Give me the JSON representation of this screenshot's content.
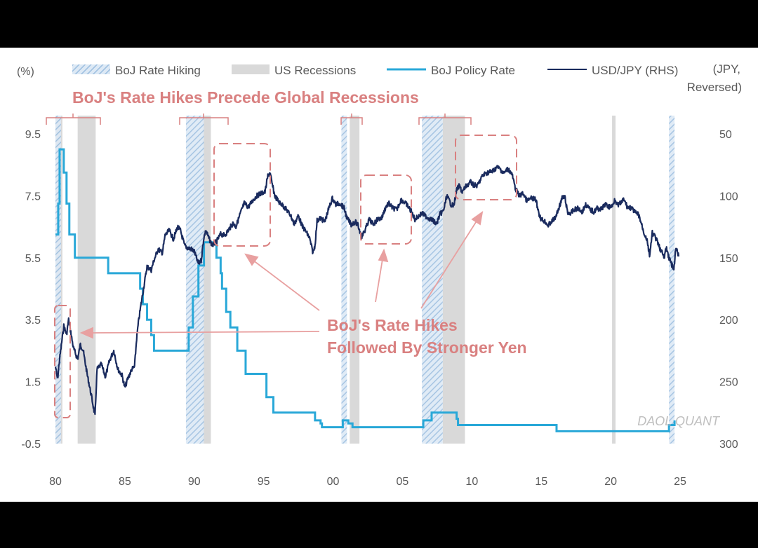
{
  "chart_data": {
    "type": "line",
    "y_left_unit": "(%)",
    "y_right_unit_line1": "(JPY,",
    "y_right_unit_line2": "Reversed)",
    "x_ticks": [
      "80",
      "85",
      "90",
      "95",
      "00",
      "05",
      "10",
      "15",
      "20",
      "25"
    ],
    "x_tick_years": [
      1980,
      1985,
      1990,
      1995,
      2000,
      2005,
      2010,
      2015,
      2020,
      2025
    ],
    "y_left_ticks": [
      "9.5",
      "7.5",
      "5.5",
      "3.5",
      "1.5",
      "-0.5"
    ],
    "y_left_tick_values": [
      9.5,
      7.5,
      5.5,
      3.5,
      1.5,
      -0.5
    ],
    "y_left_range": [
      -0.5,
      9.5
    ],
    "y_right_ticks": [
      "50",
      "100",
      "150",
      "200",
      "250",
      "300"
    ],
    "y_right_tick_values": [
      50,
      100,
      150,
      200,
      250,
      300
    ],
    "y_right_range": [
      50,
      300
    ],
    "y_right_reversed": true,
    "legend": {
      "hiking": "BoJ Rate Hiking",
      "recessions": "US Recessions",
      "policy": "BoJ Policy Rate",
      "usdjpy": "USD/JPY (RHS)"
    },
    "colors": {
      "policy": "#29a8d8",
      "usdjpy": "#1a2b5e",
      "recession": "#d9d9d9",
      "hiking": "#bcd4ea",
      "annotation": "#d98080"
    },
    "recessions": [
      [
        1980.0,
        1980.5
      ],
      [
        1981.6,
        1982.9
      ],
      [
        1990.6,
        1991.2
      ],
      [
        2001.2,
        2001.9
      ],
      [
        2007.9,
        2009.5
      ],
      [
        2020.1,
        2020.35
      ]
    ],
    "hiking_periods": [
      [
        1980.0,
        1980.4
      ],
      [
        1989.4,
        1990.7
      ],
      [
        2000.6,
        2001.0
      ],
      [
        2006.4,
        2007.9
      ],
      [
        2024.2,
        2024.6
      ]
    ],
    "boj_policy_rate": [
      [
        1980.0,
        6.25
      ],
      [
        1980.2,
        7.25
      ],
      [
        1980.3,
        9.0
      ],
      [
        1980.6,
        8.25
      ],
      [
        1980.8,
        7.25
      ],
      [
        1981.0,
        6.25
      ],
      [
        1981.2,
        6.25
      ],
      [
        1981.4,
        5.5
      ],
      [
        1983.0,
        5.5
      ],
      [
        1983.8,
        5.0
      ],
      [
        1986.0,
        5.0
      ],
      [
        1986.1,
        4.5
      ],
      [
        1986.3,
        4.0
      ],
      [
        1986.6,
        3.5
      ],
      [
        1986.9,
        3.0
      ],
      [
        1987.1,
        2.5
      ],
      [
        1989.4,
        2.5
      ],
      [
        1989.6,
        3.25
      ],
      [
        1989.9,
        4.25
      ],
      [
        1990.3,
        5.25
      ],
      [
        1990.7,
        6.0
      ],
      [
        1991.5,
        6.0
      ],
      [
        1991.6,
        5.5
      ],
      [
        1991.9,
        5.0
      ],
      [
        1992.0,
        4.5
      ],
      [
        1992.3,
        3.75
      ],
      [
        1992.6,
        3.25
      ],
      [
        1993.1,
        2.5
      ],
      [
        1993.7,
        1.75
      ],
      [
        1995.2,
        1.0
      ],
      [
        1995.7,
        0.5
      ],
      [
        1998.7,
        0.25
      ],
      [
        1999.1,
        0.15
      ],
      [
        1999.2,
        0.03
      ],
      [
        2000.6,
        0.03
      ],
      [
        2000.7,
        0.25
      ],
      [
        2001.1,
        0.15
      ],
      [
        2001.4,
        0.03
      ],
      [
        2006.3,
        0.03
      ],
      [
        2006.5,
        0.25
      ],
      [
        2007.1,
        0.5
      ],
      [
        2008.8,
        0.5
      ],
      [
        2008.9,
        0.3
      ],
      [
        2009.0,
        0.1
      ],
      [
        2016.0,
        0.1
      ],
      [
        2016.1,
        -0.1
      ],
      [
        2024.1,
        -0.1
      ],
      [
        2024.2,
        0.1
      ],
      [
        2024.6,
        0.25
      ]
    ],
    "usdjpy": [
      [
        1980.0,
        238
      ],
      [
        1980.15,
        248
      ],
      [
        1980.3,
        232
      ],
      [
        1980.6,
        205
      ],
      [
        1980.8,
        212
      ],
      [
        1980.95,
        200
      ],
      [
        1981.1,
        210
      ],
      [
        1981.3,
        223
      ],
      [
        1981.6,
        232
      ],
      [
        1981.8,
        220
      ],
      [
        1982.0,
        225
      ],
      [
        1982.3,
        245
      ],
      [
        1982.6,
        262
      ],
      [
        1982.85,
        278
      ],
      [
        1983.0,
        240
      ],
      [
        1983.3,
        236
      ],
      [
        1983.6,
        246
      ],
      [
        1983.9,
        233
      ],
      [
        1984.2,
        225
      ],
      [
        1984.5,
        240
      ],
      [
        1984.8,
        245
      ],
      [
        1985.0,
        255
      ],
      [
        1985.2,
        248
      ],
      [
        1985.5,
        240
      ],
      [
        1985.7,
        238
      ],
      [
        1985.85,
        215
      ],
      [
        1986.0,
        200
      ],
      [
        1986.3,
        178
      ],
      [
        1986.6,
        157
      ],
      [
        1986.9,
        160
      ],
      [
        1987.1,
        152
      ],
      [
        1987.4,
        143
      ],
      [
        1987.7,
        146
      ],
      [
        1987.9,
        132
      ],
      [
        1988.2,
        128
      ],
      [
        1988.5,
        135
      ],
      [
        1988.8,
        125
      ],
      [
        1989.0,
        128
      ],
      [
        1989.3,
        140
      ],
      [
        1989.5,
        142
      ],
      [
        1989.8,
        143
      ],
      [
        1990.0,
        145
      ],
      [
        1990.3,
        155
      ],
      [
        1990.5,
        152
      ],
      [
        1990.7,
        133
      ],
      [
        1990.85,
        128
      ],
      [
        1991.0,
        133
      ],
      [
        1991.3,
        140
      ],
      [
        1991.6,
        137
      ],
      [
        1991.9,
        131
      ],
      [
        1992.2,
        132
      ],
      [
        1992.5,
        127
      ],
      [
        1992.8,
        122
      ],
      [
        1993.0,
        125
      ],
      [
        1993.3,
        115
      ],
      [
        1993.6,
        106
      ],
      [
        1993.9,
        109
      ],
      [
        1994.2,
        104
      ],
      [
        1994.5,
        100
      ],
      [
        1994.8,
        98
      ],
      [
        1995.1,
        97
      ],
      [
        1995.3,
        84
      ],
      [
        1995.45,
        81
      ],
      [
        1995.6,
        90
      ],
      [
        1995.8,
        100
      ],
      [
        1996.1,
        105
      ],
      [
        1996.4,
        108
      ],
      [
        1996.7,
        112
      ],
      [
        1996.95,
        116
      ],
      [
        1997.2,
        123
      ],
      [
        1997.5,
        116
      ],
      [
        1997.8,
        125
      ],
      [
        1998.0,
        128
      ],
      [
        1998.3,
        134
      ],
      [
        1998.55,
        146
      ],
      [
        1998.7,
        140
      ],
      [
        1998.85,
        120
      ],
      [
        1999.1,
        118
      ],
      [
        1999.4,
        121
      ],
      [
        1999.7,
        110
      ],
      [
        1999.95,
        102
      ],
      [
        2000.2,
        107
      ],
      [
        2000.5,
        106
      ],
      [
        2000.8,
        110
      ],
      [
        2001.0,
        118
      ],
      [
        2001.3,
        123
      ],
      [
        2001.6,
        121
      ],
      [
        2001.8,
        124
      ],
      [
        2002.05,
        133
      ],
      [
        2002.3,
        128
      ],
      [
        2002.6,
        119
      ],
      [
        2002.9,
        123
      ],
      [
        2003.2,
        119
      ],
      [
        2003.5,
        118
      ],
      [
        2003.8,
        109
      ],
      [
        2004.0,
        106
      ],
      [
        2004.3,
        110
      ],
      [
        2004.6,
        111
      ],
      [
        2004.9,
        103
      ],
      [
        2005.1,
        105
      ],
      [
        2005.3,
        107
      ],
      [
        2005.6,
        112
      ],
      [
        2005.9,
        119
      ],
      [
        2006.1,
        117
      ],
      [
        2006.4,
        114
      ],
      [
        2006.6,
        116
      ],
      [
        2006.9,
        118
      ],
      [
        2007.2,
        120
      ],
      [
        2007.45,
        123
      ],
      [
        2007.7,
        115
      ],
      [
        2007.95,
        112
      ],
      [
        2008.2,
        100
      ],
      [
        2008.5,
        107
      ],
      [
        2008.7,
        108
      ],
      [
        2008.9,
        95
      ],
      [
        2009.1,
        92
      ],
      [
        2009.3,
        97
      ],
      [
        2009.6,
        92
      ],
      [
        2009.9,
        89
      ],
      [
        2010.1,
        91
      ],
      [
        2010.4,
        92
      ],
      [
        2010.7,
        85
      ],
      [
        2010.95,
        82
      ],
      [
        2011.2,
        81
      ],
      [
        2011.5,
        80
      ],
      [
        2011.8,
        77
      ],
      [
        2012.0,
        78
      ],
      [
        2012.3,
        82
      ],
      [
        2012.6,
        78
      ],
      [
        2012.9,
        83
      ],
      [
        2013.1,
        93
      ],
      [
        2013.4,
        100
      ],
      [
        2013.7,
        98
      ],
      [
        2013.95,
        104
      ],
      [
        2014.3,
        102
      ],
      [
        2014.6,
        103
      ],
      [
        2014.85,
        115
      ],
      [
        2015.0,
        119
      ],
      [
        2015.3,
        121
      ],
      [
        2015.5,
        124
      ],
      [
        2015.8,
        120
      ],
      [
        2016.0,
        118
      ],
      [
        2016.2,
        112
      ],
      [
        2016.5,
        102
      ],
      [
        2016.7,
        101
      ],
      [
        2016.9,
        114
      ],
      [
        2017.1,
        114
      ],
      [
        2017.4,
        111
      ],
      [
        2017.7,
        110
      ],
      [
        2017.95,
        113
      ],
      [
        2018.2,
        107
      ],
      [
        2018.5,
        111
      ],
      [
        2018.8,
        113
      ],
      [
        2019.0,
        110
      ],
      [
        2019.3,
        111
      ],
      [
        2019.6,
        107
      ],
      [
        2019.9,
        109
      ],
      [
        2020.15,
        108
      ],
      [
        2020.3,
        102
      ],
      [
        2020.5,
        108
      ],
      [
        2020.8,
        105
      ],
      [
        2020.95,
        103
      ],
      [
        2021.2,
        109
      ],
      [
        2021.5,
        110
      ],
      [
        2021.8,
        114
      ],
      [
        2022.0,
        115
      ],
      [
        2022.2,
        122
      ],
      [
        2022.4,
        130
      ],
      [
        2022.6,
        135
      ],
      [
        2022.8,
        148
      ],
      [
        2022.9,
        140
      ],
      [
        2023.0,
        130
      ],
      [
        2023.2,
        133
      ],
      [
        2023.45,
        140
      ],
      [
        2023.7,
        146
      ],
      [
        2023.85,
        150
      ],
      [
        2024.0,
        142
      ],
      [
        2024.2,
        150
      ],
      [
        2024.45,
        157
      ],
      [
        2024.55,
        161
      ],
      [
        2024.65,
        146
      ],
      [
        2024.75,
        143
      ],
      [
        2024.9,
        149
      ]
    ]
  },
  "annotations": {
    "precede": "BoJ's Rate Hikes Precede Global Recessions",
    "followed_line1": "BoJ's Rate Hikes",
    "followed_line2": "Followed By Stronger Yen"
  },
  "watermark": "DAOL QUANT"
}
